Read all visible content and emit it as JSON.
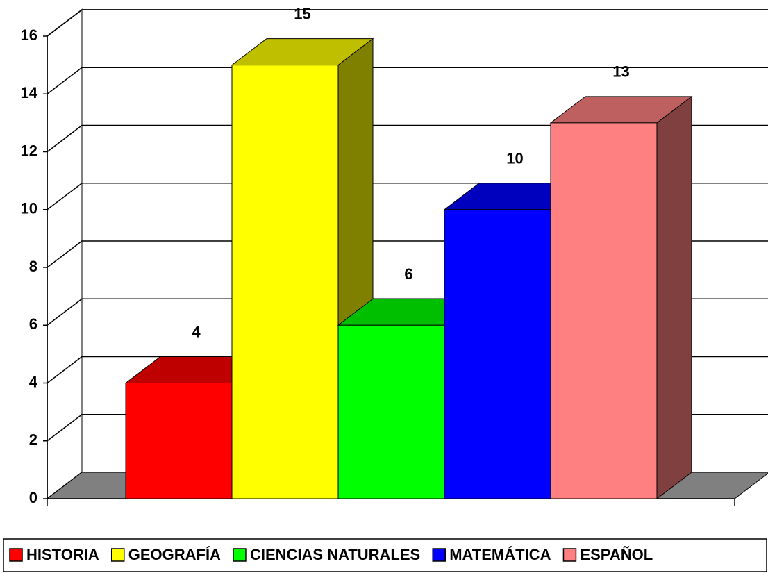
{
  "chart_data": {
    "type": "bar3d",
    "series": [
      {
        "name": "HISTORIA",
        "color": "#ff0000",
        "values": [
          4
        ]
      },
      {
        "name": "GEOGRAFÍA",
        "color": "#ffff00",
        "values": [
          15
        ]
      },
      {
        "name": "CIENCIAS NATURALES",
        "color": "#00ff00",
        "values": [
          6
        ]
      },
      {
        "name": "MATEMÁTICA",
        "color": "#0000ff",
        "values": [
          10
        ]
      },
      {
        "name": "ESPAÑOL",
        "color": "#ff8080",
        "values": [
          13
        ]
      }
    ],
    "ylim": [
      0,
      16
    ],
    "yticks": [
      0,
      2,
      4,
      6,
      8,
      10,
      12,
      14,
      16
    ],
    "grid": true,
    "legend": "bottom"
  }
}
